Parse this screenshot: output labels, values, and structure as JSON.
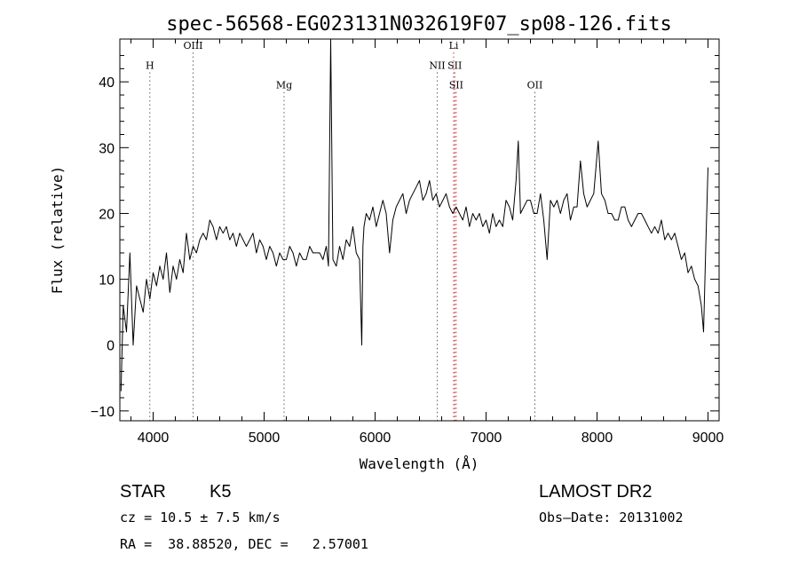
{
  "chart_data": {
    "type": "line",
    "title": "spec-56568-EG023131N032619F07_sp08-126.fits",
    "xlabel": "Wavelength (Å)",
    "ylabel": "Flux (relative)",
    "xlim": [
      3700,
      9100
    ],
    "ylim": [
      -11.5,
      46.5
    ],
    "x_ticks": [
      "4000",
      "5000",
      "6000",
      "7000",
      "8000",
      "9000"
    ],
    "y_ticks": [
      "−10",
      "0",
      "10",
      "20",
      "30",
      "40"
    ],
    "grid": false,
    "lines": [
      {
        "label": "H",
        "x": 3970,
        "y": 42,
        "color": "#606060"
      },
      {
        "label": "OIII",
        "x": 4360,
        "y": 45,
        "color": "#606060"
      },
      {
        "label": "Mg",
        "x": 5180,
        "y": 39,
        "color": "#606060"
      },
      {
        "label": "Li",
        "x": 6708,
        "y": 45,
        "color": "#cc3333"
      },
      {
        "label": "NII",
        "x": 6560,
        "y": 42,
        "color": "#606060"
      },
      {
        "label": "SII",
        "x": 6718,
        "y": 42,
        "color": "#cc3333"
      },
      {
        "label": "SII",
        "x": 6731,
        "y": 39,
        "color": "#cc3333"
      },
      {
        "label": "OII",
        "x": 7440,
        "y": 39,
        "color": "#606060"
      }
    ],
    "series": [
      {
        "x": [
          3710,
          3730,
          3760,
          3790,
          3820,
          3850,
          3880,
          3910,
          3940,
          3970,
          4000,
          4030,
          4060,
          4090,
          4120,
          4150,
          4180,
          4210,
          4240,
          4270,
          4300,
          4330,
          4360,
          4390,
          4420,
          4450,
          4480,
          4510,
          4540,
          4570,
          4600,
          4630,
          4660,
          4690,
          4720,
          4750,
          4780,
          4810,
          4840,
          4870,
          4900,
          4930,
          4960,
          4990,
          5020,
          5050,
          5080,
          5110,
          5140,
          5170,
          5200,
          5230,
          5260,
          5290,
          5320,
          5350,
          5380,
          5410,
          5440,
          5470,
          5500,
          5530,
          5560,
          5580,
          5600,
          5620,
          5650,
          5680,
          5710,
          5740,
          5770,
          5800,
          5830,
          5860,
          5880,
          5890,
          5900,
          5920,
          5950,
          5980,
          6010,
          6040,
          6070,
          6100,
          6130,
          6160,
          6190,
          6220,
          6250,
          6280,
          6310,
          6340,
          6370,
          6400,
          6430,
          6460,
          6490,
          6520,
          6550,
          6580,
          6610,
          6640,
          6670,
          6700,
          6730,
          6760,
          6790,
          6820,
          6850,
          6880,
          6910,
          6940,
          6970,
          7000,
          7030,
          7060,
          7090,
          7120,
          7150,
          7180,
          7210,
          7240,
          7270,
          7290,
          7310,
          7340,
          7370,
          7400,
          7430,
          7460,
          7490,
          7520,
          7550,
          7580,
          7610,
          7640,
          7670,
          7700,
          7730,
          7760,
          7790,
          7820,
          7850,
          7880,
          7910,
          7940,
          7970,
          7990,
          8010,
          8040,
          8070,
          8100,
          8130,
          8160,
          8190,
          8220,
          8250,
          8280,
          8310,
          8340,
          8370,
          8400,
          8430,
          8460,
          8490,
          8520,
          8550,
          8580,
          8610,
          8640,
          8670,
          8700,
          8730,
          8760,
          8790,
          8820,
          8850,
          8880,
          8910,
          8940,
          8960,
          8980,
          9000
        ],
        "y": [
          -7,
          6,
          2,
          14,
          0,
          9,
          7,
          5,
          10,
          7,
          11,
          9,
          12,
          10,
          14,
          8,
          12,
          10,
          13,
          11,
          17,
          13,
          15,
          14,
          16,
          17,
          16,
          19,
          18,
          16,
          18,
          17,
          18,
          16,
          17,
          15,
          17,
          16,
          15,
          16,
          17,
          14,
          16,
          15,
          13,
          15,
          14,
          12,
          14,
          13,
          13,
          15,
          14,
          12,
          14,
          13,
          13,
          15,
          14,
          14,
          14,
          13,
          15,
          12,
          47,
          13,
          12,
          15,
          13,
          16,
          15,
          18,
          14,
          13,
          0,
          15,
          18,
          20,
          19,
          21,
          18,
          20,
          22,
          20,
          14,
          19,
          21,
          22,
          23,
          20,
          22,
          23,
          24,
          25,
          22,
          23,
          25,
          22,
          23,
          21,
          22,
          23,
          21,
          20,
          21,
          20,
          19,
          21,
          18,
          20,
          19,
          20,
          18,
          19,
          17,
          20,
          18,
          19,
          18,
          22,
          21,
          19,
          25,
          31,
          20,
          21,
          22,
          22,
          20,
          20,
          23,
          19,
          13,
          22,
          21,
          22,
          20,
          22,
          23,
          19,
          21,
          21,
          28,
          23,
          21,
          22,
          23,
          27,
          31,
          23,
          22,
          20,
          20,
          19,
          19,
          21,
          21,
          19,
          18,
          19,
          20,
          20,
          19,
          18,
          17,
          18,
          17,
          19,
          16,
          17,
          16,
          17,
          15,
          13,
          14,
          11,
          12,
          10,
          9,
          6,
          2,
          15,
          27
        ]
      }
    ]
  },
  "info": {
    "class_label": "STAR",
    "subclass": "K5",
    "survey": "LAMOST DR2",
    "cz": "cz = 10.5 ± 7.5 km/s",
    "obs_date": "Obs–Date: 20131002",
    "radec": "RA =  38.88520, DEC =   2.57001"
  }
}
